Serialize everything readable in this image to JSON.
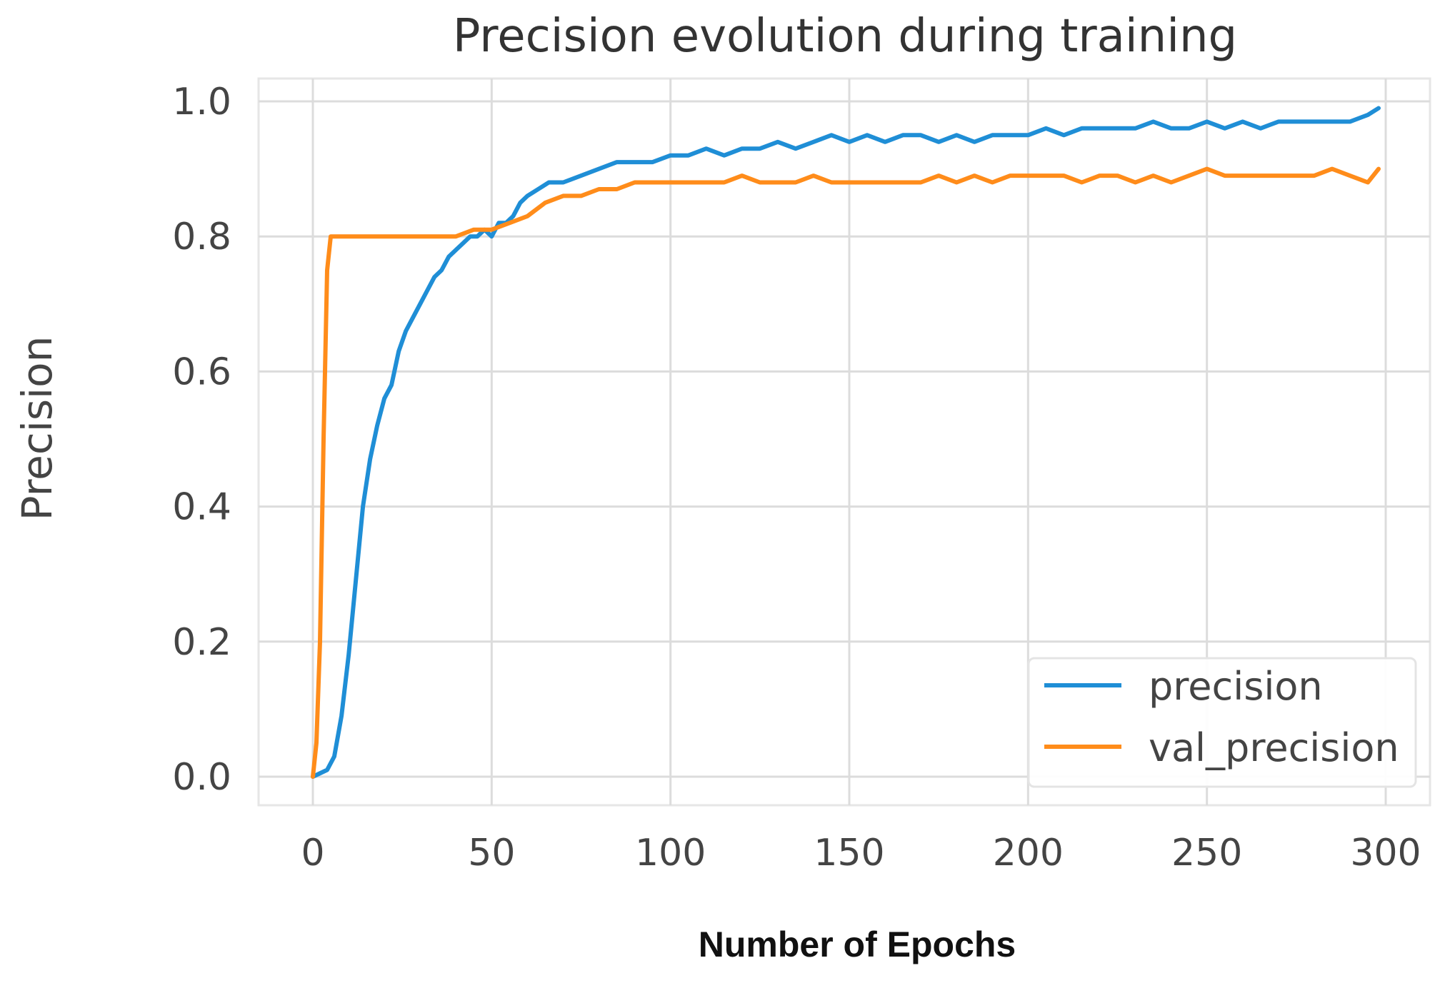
{
  "chart_data": {
    "type": "line",
    "title": "Precision evolution during training",
    "xlabel": "Number of Epochs",
    "ylabel": "Precision",
    "xlim": [
      0,
      300
    ],
    "ylim": [
      0.0,
      1.0
    ],
    "xticks": [
      0,
      50,
      100,
      150,
      200,
      250,
      300
    ],
    "xtick_labels": [
      "0",
      "50",
      "100",
      "150",
      "200",
      "250",
      "300"
    ],
    "yticks": [
      0.0,
      0.2,
      0.4,
      0.6,
      0.8,
      1.0
    ],
    "ytick_labels": [
      "0.0",
      "0.2",
      "0.4",
      "0.6",
      "0.8",
      "1.0"
    ],
    "grid": true,
    "legend_position": "bottom-right",
    "series": [
      {
        "name": "precision",
        "color": "#1f8ed6",
        "x": [
          0,
          4,
          6,
          8,
          10,
          12,
          14,
          16,
          18,
          20,
          22,
          24,
          26,
          28,
          30,
          32,
          34,
          36,
          38,
          40,
          42,
          44,
          46,
          48,
          50,
          52,
          54,
          56,
          58,
          60,
          63,
          66,
          70,
          75,
          80,
          85,
          90,
          95,
          100,
          105,
          110,
          115,
          120,
          125,
          130,
          135,
          140,
          145,
          150,
          155,
          160,
          165,
          170,
          175,
          180,
          185,
          190,
          195,
          200,
          205,
          210,
          215,
          220,
          225,
          230,
          235,
          240,
          245,
          250,
          255,
          260,
          265,
          270,
          275,
          280,
          285,
          290,
          295,
          298
        ],
        "y": [
          0.0,
          0.01,
          0.03,
          0.09,
          0.18,
          0.29,
          0.4,
          0.47,
          0.52,
          0.56,
          0.58,
          0.63,
          0.66,
          0.68,
          0.7,
          0.72,
          0.74,
          0.75,
          0.77,
          0.78,
          0.79,
          0.8,
          0.8,
          0.81,
          0.8,
          0.82,
          0.82,
          0.83,
          0.85,
          0.86,
          0.87,
          0.88,
          0.88,
          0.89,
          0.9,
          0.91,
          0.91,
          0.91,
          0.92,
          0.92,
          0.93,
          0.92,
          0.93,
          0.93,
          0.94,
          0.93,
          0.94,
          0.95,
          0.94,
          0.95,
          0.94,
          0.95,
          0.95,
          0.94,
          0.95,
          0.94,
          0.95,
          0.95,
          0.95,
          0.96,
          0.95,
          0.96,
          0.96,
          0.96,
          0.96,
          0.97,
          0.96,
          0.96,
          0.97,
          0.96,
          0.97,
          0.96,
          0.97,
          0.97,
          0.97,
          0.97,
          0.97,
          0.98,
          0.99
        ]
      },
      {
        "name": "val_precision",
        "color": "#ff8c1a",
        "x": [
          0,
          1,
          2,
          3,
          4,
          5,
          6,
          8,
          10,
          15,
          20,
          25,
          30,
          35,
          40,
          45,
          50,
          55,
          60,
          65,
          70,
          75,
          80,
          85,
          90,
          95,
          100,
          105,
          110,
          115,
          120,
          125,
          130,
          135,
          140,
          145,
          150,
          155,
          160,
          165,
          170,
          175,
          180,
          185,
          190,
          195,
          200,
          205,
          210,
          215,
          220,
          225,
          230,
          235,
          240,
          245,
          250,
          255,
          260,
          265,
          270,
          275,
          280,
          285,
          290,
          295,
          298
        ],
        "y": [
          0.0,
          0.05,
          0.2,
          0.5,
          0.75,
          0.8,
          0.8,
          0.8,
          0.8,
          0.8,
          0.8,
          0.8,
          0.8,
          0.8,
          0.8,
          0.81,
          0.81,
          0.82,
          0.83,
          0.85,
          0.86,
          0.86,
          0.87,
          0.87,
          0.88,
          0.88,
          0.88,
          0.88,
          0.88,
          0.88,
          0.89,
          0.88,
          0.88,
          0.88,
          0.89,
          0.88,
          0.88,
          0.88,
          0.88,
          0.88,
          0.88,
          0.89,
          0.88,
          0.89,
          0.88,
          0.89,
          0.89,
          0.89,
          0.89,
          0.88,
          0.89,
          0.89,
          0.88,
          0.89,
          0.88,
          0.89,
          0.9,
          0.89,
          0.89,
          0.89,
          0.89,
          0.89,
          0.89,
          0.9,
          0.89,
          0.88,
          0.9
        ]
      }
    ]
  }
}
